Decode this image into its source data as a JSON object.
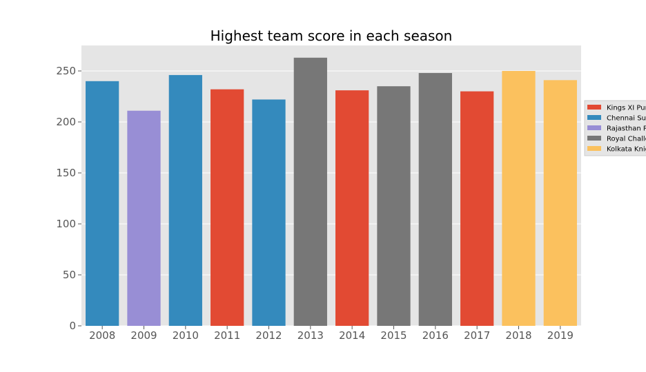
{
  "chart_data": {
    "type": "bar",
    "title": "Highest team score in each season",
    "xlabel": "",
    "ylabel": "",
    "categories": [
      "2008",
      "2009",
      "2010",
      "2011",
      "2012",
      "2013",
      "2014",
      "2015",
      "2016",
      "2017",
      "2018",
      "2019"
    ],
    "values": [
      240,
      211,
      246,
      232,
      222,
      263,
      231,
      235,
      248,
      230,
      250,
      241
    ],
    "bar_teams": [
      "Chennai Super Kings",
      "Rajasthan Royals",
      "Chennai Super Kings",
      "Kings XI Punjab",
      "Chennai Super Kings",
      "Royal Challengers Bangalore",
      "Kings XI Punjab",
      "Royal Challengers Bangalore",
      "Royal Challengers Bangalore",
      "Kings XI Punjab",
      "Kolkata Knight Riders",
      "Kolkata Knight Riders"
    ],
    "ylim": [
      0,
      275
    ],
    "yticks": [
      0,
      50,
      100,
      150,
      200,
      250
    ],
    "grid": true,
    "legend_position": "right, partially cut off",
    "legend": [
      {
        "label": "Kings XI Punjab",
        "color": "#E24A33"
      },
      {
        "label": "Chennai Super Kings",
        "color": "#348ABD"
      },
      {
        "label": "Rajasthan Royals",
        "color": "#988ED5"
      },
      {
        "label": "Royal Challengers Bangalore",
        "color": "#777777"
      },
      {
        "label": "Kolkata Knight Riders",
        "color": "#FBC15E"
      }
    ],
    "plot_background": "#E5E5E5",
    "gridline_color": "#FFFFFF"
  }
}
